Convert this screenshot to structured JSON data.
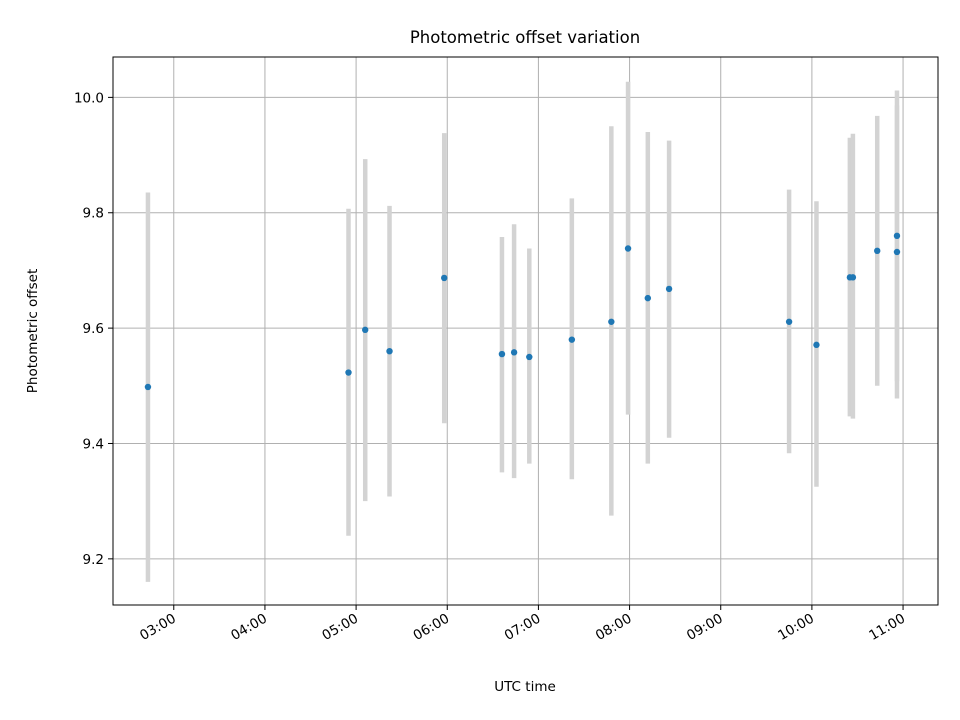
{
  "chart_data": {
    "type": "scatter",
    "title": "Photometric offset variation",
    "xlabel": "UTC time",
    "ylabel": "Photometric offset",
    "x_ticks": [
      "03:00",
      "04:00",
      "05:00",
      "06:00",
      "07:00",
      "08:00",
      "09:00",
      "10:00",
      "11:00"
    ],
    "y_ticks": [
      "9.2",
      "9.4",
      "9.6",
      "9.8",
      "10.0"
    ],
    "xlim": [
      "02:20",
      "11:23"
    ],
    "ylim": [
      9.12,
      10.07
    ],
    "grid": true,
    "marker_color": "#1f77b4",
    "errorbar_color": "#d3d3d3",
    "points": [
      {
        "x": "02:43",
        "y": 9.498,
        "ylow": 9.16,
        "yhigh": 9.835
      },
      {
        "x": "04:55",
        "y": 9.523,
        "ylow": 9.24,
        "yhigh": 9.807
      },
      {
        "x": "05:06",
        "y": 9.597,
        "ylow": 9.3,
        "yhigh": 9.893
      },
      {
        "x": "05:22",
        "y": 9.56,
        "ylow": 9.308,
        "yhigh": 9.812
      },
      {
        "x": "05:58",
        "y": 9.687,
        "ylow": 9.435,
        "yhigh": 9.938
      },
      {
        "x": "06:36",
        "y": 9.555,
        "ylow": 9.35,
        "yhigh": 9.758
      },
      {
        "x": "06:44",
        "y": 9.558,
        "ylow": 9.34,
        "yhigh": 9.78
      },
      {
        "x": "06:54",
        "y": 9.55,
        "ylow": 9.365,
        "yhigh": 9.738
      },
      {
        "x": "07:22",
        "y": 9.58,
        "ylow": 9.338,
        "yhigh": 9.825
      },
      {
        "x": "07:48",
        "y": 9.611,
        "ylow": 9.275,
        "yhigh": 9.95
      },
      {
        "x": "07:59",
        "y": 9.738,
        "ylow": 9.45,
        "yhigh": 10.027
      },
      {
        "x": "08:12",
        "y": 9.652,
        "ylow": 9.365,
        "yhigh": 9.94
      },
      {
        "x": "08:26",
        "y": 9.668,
        "ylow": 9.41,
        "yhigh": 9.925
      },
      {
        "x": "09:45",
        "y": 9.611,
        "ylow": 9.383,
        "yhigh": 9.84
      },
      {
        "x": "10:03",
        "y": 9.571,
        "ylow": 9.325,
        "yhigh": 9.82
      },
      {
        "x": "10:25",
        "y": 9.688,
        "ylow": 9.447,
        "yhigh": 9.93
      },
      {
        "x": "10:27",
        "y": 9.688,
        "ylow": 9.443,
        "yhigh": 9.937
      },
      {
        "x": "10:43",
        "y": 9.734,
        "ylow": 9.5,
        "yhigh": 9.968
      },
      {
        "x": "10:56",
        "y": 9.732,
        "ylow": 9.478,
        "yhigh": 9.986
      },
      {
        "x": "10:56",
        "y": 9.76,
        "ylow": 9.508,
        "yhigh": 10.012
      }
    ]
  }
}
